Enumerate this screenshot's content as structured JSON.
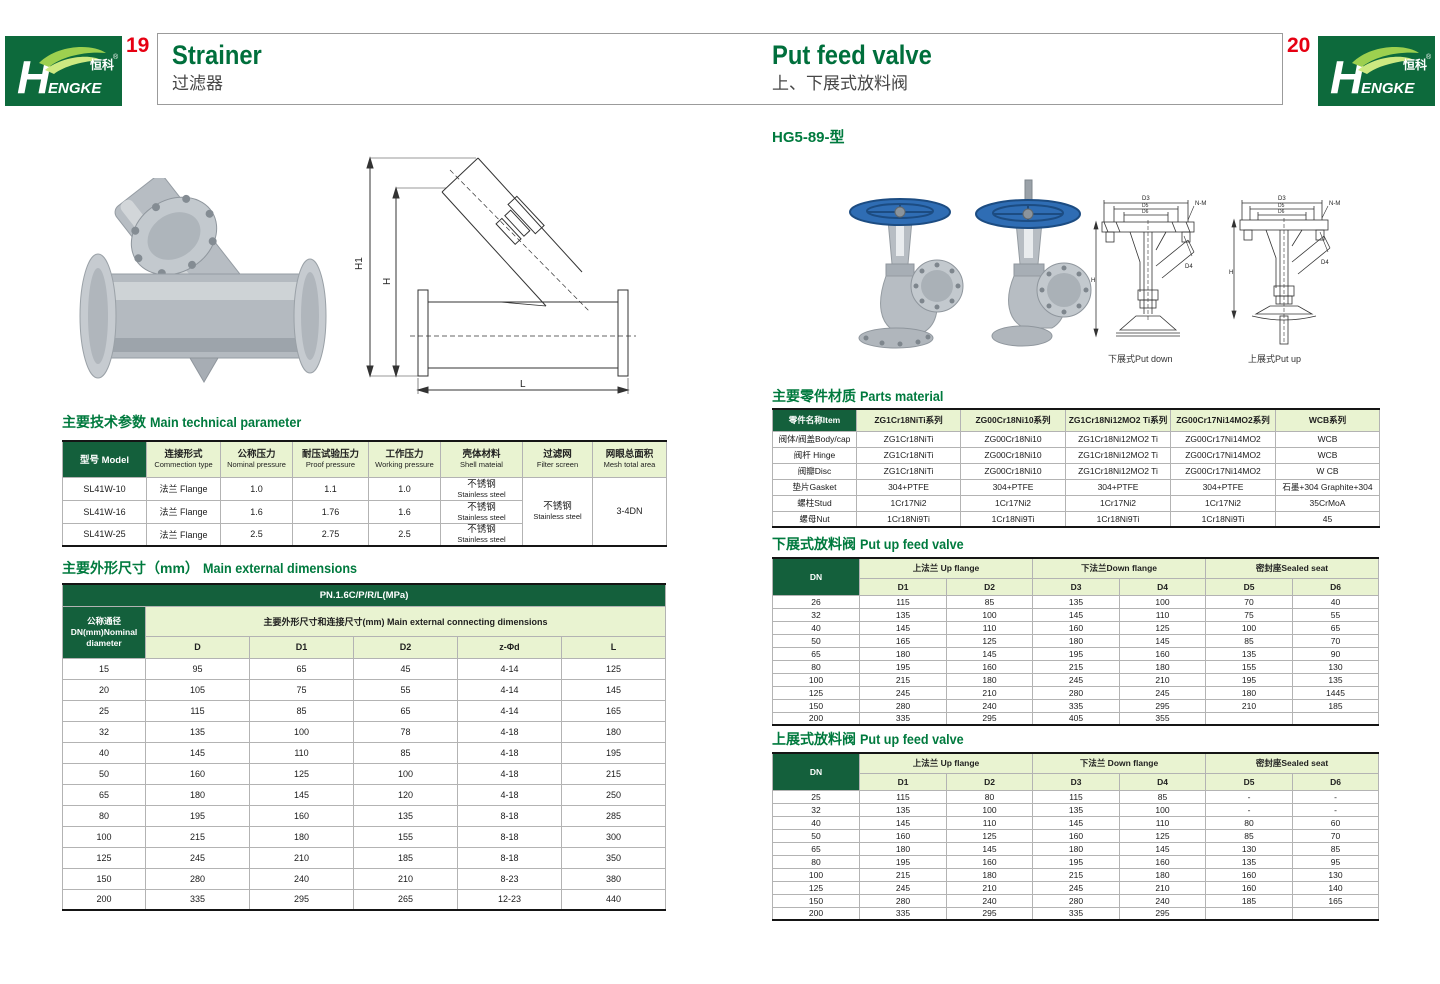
{
  "colors": {
    "brand_green": "#0d6a3c",
    "header_dark_green": "#14603c",
    "header_light_green": "#e9f3d1",
    "title_green": "#007a3e",
    "page_number_red": "#e60012"
  },
  "page": {
    "left_page_num": "19",
    "right_page_num": "20",
    "left_title_en": "Strainer",
    "left_title_zh": "过滤器",
    "right_title_en": "Put feed valve",
    "right_title_zh": "上、下展式放料阀",
    "model_code": "HG5-89-型"
  },
  "logo": {
    "h": "H",
    "engke": "ENGKE",
    "zh": "恒科",
    "reg": "®"
  },
  "left": {
    "tech": {
      "title_zh": "主要技术参数",
      "title_en": "Main technical parameter",
      "header_model": "型号 Model",
      "headers": [
        {
          "zh": "连接形式",
          "en": "Commection type"
        },
        {
          "zh": "公称压力",
          "en": "Nominal pressure"
        },
        {
          "zh": "耐压试验压力",
          "en": "Proof pressure"
        },
        {
          "zh": "工作压力",
          "en": "Working pressure"
        },
        {
          "zh": "壳体材料",
          "en": "Shell mateial"
        },
        {
          "zh": "过滤网",
          "en": "Filter screen"
        },
        {
          "zh": "网眼总面积",
          "en": "Mesh total area"
        }
      ],
      "rows": [
        {
          "model": "SL41W-10",
          "conn": "法兰 Flange",
          "nominal": "1.0",
          "proof": "1.1",
          "working": "1.0",
          "shell_zh": "不锈钢",
          "shell_en": "Stainless steel"
        },
        {
          "model": "SL41W-16",
          "conn": "法兰 Flange",
          "nominal": "1.6",
          "proof": "1.76",
          "working": "1.6",
          "shell_zh": "不锈钢",
          "shell_en": "Stainless steel"
        },
        {
          "model": "SL41W-25",
          "conn": "法兰 Flange",
          "nominal": "2.5",
          "proof": "2.75",
          "working": "2.5",
          "shell_zh": "不锈钢",
          "shell_en": "Stainless steel"
        }
      ],
      "filter_zh": "不锈钢",
      "filter_en": "Stainless steel",
      "mesh_area": "3-4DN"
    },
    "dims": {
      "title_zh": "主要外形尺寸（mm）",
      "title_en": "Main external dimensions",
      "band": "PN.1.6C/P/R/L(MPa)",
      "dn_label": "公称通径\nDN(mm)Nominal\ndiameter",
      "group": "主要外形尺寸和连接尺寸(mm) Main external connecting dimensions",
      "cols": [
        "D",
        "D1",
        "D2",
        "z-Φd",
        "L"
      ],
      "rows": [
        [
          "15",
          "95",
          "65",
          "45",
          "4-14",
          "125"
        ],
        [
          "20",
          "105",
          "75",
          "55",
          "4-14",
          "145"
        ],
        [
          "25",
          "115",
          "85",
          "65",
          "4-14",
          "165"
        ],
        [
          "32",
          "135",
          "100",
          "78",
          "4-18",
          "180"
        ],
        [
          "40",
          "145",
          "110",
          "85",
          "4-18",
          "195"
        ],
        [
          "50",
          "160",
          "125",
          "100",
          "4-18",
          "215"
        ],
        [
          "65",
          "180",
          "145",
          "120",
          "4-18",
          "250"
        ],
        [
          "80",
          "195",
          "160",
          "135",
          "8-18",
          "285"
        ],
        [
          "100",
          "215",
          "180",
          "155",
          "8-18",
          "300"
        ],
        [
          "125",
          "245",
          "210",
          "185",
          "8-18",
          "350"
        ],
        [
          "150",
          "280",
          "240",
          "210",
          "8-23",
          "380"
        ],
        [
          "200",
          "335",
          "295",
          "265",
          "12-23",
          "440"
        ]
      ]
    },
    "drawing": {
      "h1": "H1",
      "h": "H",
      "l": "L"
    }
  },
  "right": {
    "parts": {
      "title_zh": "主要零件材质",
      "title_en": "Parts material",
      "headers": [
        "零件名称Item",
        "ZG1Cr18NiTi系列",
        "ZG00Cr18Ni10系列",
        "ZG1Cr18Ni12MO2 Ti系列",
        "ZG00Cr17Ni14MO2系列",
        "WCB系列"
      ],
      "rows": [
        [
          "阀体/阀盖Body/cap",
          "ZG1Cr18NiTi",
          "ZG00Cr18Ni10",
          "ZG1Cr18Ni12MO2 Ti",
          "ZG00Cr17Ni14MO2",
          "WCB"
        ],
        [
          "阀杆 Hinge",
          "ZG1Cr18NiTi",
          "ZG00Cr18Ni10",
          "ZG1Cr18Ni12MO2 Ti",
          "ZG00Cr17Ni14MO2",
          "WCB"
        ],
        [
          "阀瓣Disc",
          "ZG1Cr18NiTi",
          "ZG00Cr18Ni10",
          "ZG1Cr18Ni12MO2 Ti",
          "ZG00Cr17Ni14MO2",
          "W CB"
        ],
        [
          "垫片Gasket",
          "304+PTFE",
          "304+PTFE",
          "304+PTFE",
          "304+PTFE",
          "石墨+304 Graphite+304"
        ],
        [
          "螺柱Stud",
          "1Cr17Ni2",
          "1Cr17Ni2",
          "1Cr17Ni2",
          "1Cr17Ni2",
          "35CrMoA"
        ],
        [
          "螺母Nut",
          "1Cr18Ni9Ti",
          "1Cr18Ni9Ti",
          "1Cr18Ni9Ti",
          "1Cr18Ni9Ti",
          "45"
        ]
      ]
    },
    "put_down": {
      "title_zh": "下展式放料阀",
      "title_en": "Put up feed valve",
      "dn": "DN",
      "groups": [
        "上法兰 Up flange",
        "下法兰Down flange",
        "密封座Sealed seat"
      ],
      "cols": [
        "D1",
        "D2",
        "D3",
        "D4",
        "D5",
        "D6"
      ],
      "rows": [
        [
          "26",
          "115",
          "85",
          "135",
          "100",
          "70",
          "40"
        ],
        [
          "32",
          "135",
          "100",
          "145",
          "110",
          "75",
          "55"
        ],
        [
          "40",
          "145",
          "110",
          "160",
          "125",
          "100",
          "65"
        ],
        [
          "50",
          "165",
          "125",
          "180",
          "145",
          "85",
          "70"
        ],
        [
          "65",
          "180",
          "145",
          "195",
          "160",
          "135",
          "90"
        ],
        [
          "80",
          "195",
          "160",
          "215",
          "180",
          "155",
          "130"
        ],
        [
          "100",
          "215",
          "180",
          "245",
          "210",
          "195",
          "135"
        ],
        [
          "125",
          "245",
          "210",
          "280",
          "245",
          "180",
          "1445"
        ],
        [
          "150",
          "280",
          "240",
          "335",
          "295",
          "210",
          "185"
        ],
        [
          "200",
          "335",
          "295",
          "405",
          "355",
          "",
          ""
        ]
      ]
    },
    "put_up": {
      "title_zh": "上展式放料阀",
      "title_en": "Put up feed valve",
      "dn": "DN",
      "groups": [
        "上法兰 Up flange",
        "下法兰 Down flange",
        "密封座Sealed seat"
      ],
      "cols": [
        "D1",
        "D2",
        "D3",
        "D4",
        "D5",
        "D6"
      ],
      "rows": [
        [
          "25",
          "115",
          "80",
          "115",
          "85",
          "-",
          "-"
        ],
        [
          "32",
          "135",
          "100",
          "135",
          "100",
          "-",
          "-"
        ],
        [
          "40",
          "145",
          "110",
          "145",
          "110",
          "80",
          "60"
        ],
        [
          "50",
          "160",
          "125",
          "160",
          "125",
          "85",
          "70"
        ],
        [
          "65",
          "180",
          "145",
          "180",
          "145",
          "130",
          "85"
        ],
        [
          "80",
          "195",
          "160",
          "195",
          "160",
          "135",
          "95"
        ],
        [
          "100",
          "215",
          "180",
          "215",
          "180",
          "160",
          "130"
        ],
        [
          "125",
          "245",
          "210",
          "245",
          "210",
          "160",
          "140"
        ],
        [
          "150",
          "280",
          "240",
          "280",
          "240",
          "185",
          "165"
        ],
        [
          "200",
          "335",
          "295",
          "335",
          "295",
          "",
          ""
        ]
      ]
    },
    "captions": {
      "down": "下展式Put down",
      "up": "上展式Put up"
    },
    "drawing_labels": {
      "d3": "D3",
      "d5": "D5",
      "d6": "D6",
      "nm": "N-M",
      "d4": "D4",
      "h": "H"
    }
  }
}
